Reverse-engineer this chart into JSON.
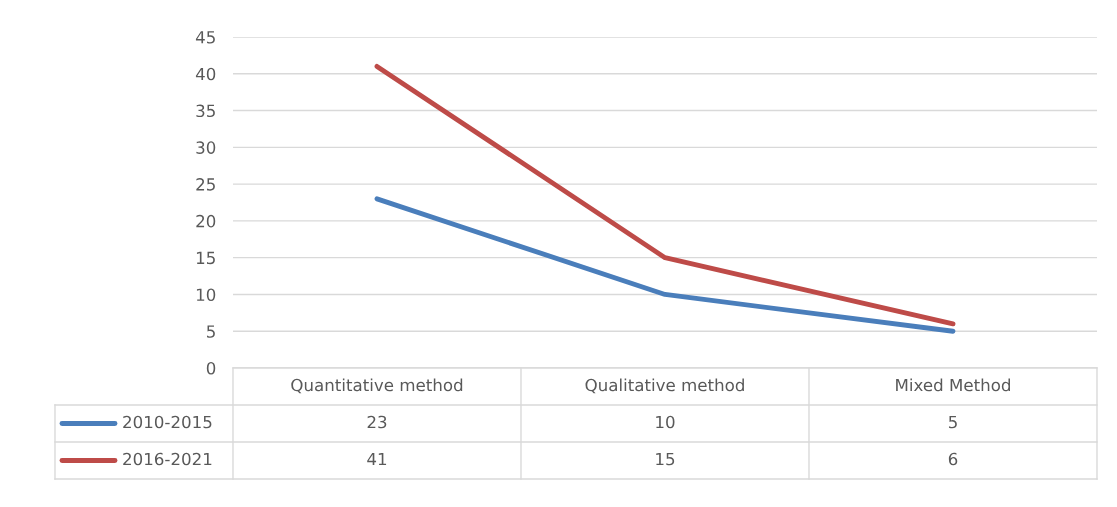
{
  "chart_data": {
    "type": "line",
    "categories": [
      "Quantitative method",
      "Qualitative method",
      "Mixed Method"
    ],
    "series": [
      {
        "name": "2010-2015",
        "color": "#4a7ebb",
        "values": [
          23,
          10,
          5
        ]
      },
      {
        "name": "2016-2021",
        "color": "#be4b48",
        "values": [
          41,
          15,
          6
        ]
      }
    ],
    "ylim": [
      0,
      45
    ],
    "yticks": [
      0,
      5,
      10,
      15,
      20,
      25,
      30,
      35,
      40,
      45
    ],
    "grid": "y",
    "legend": "bottom left",
    "data_labels": true,
    "marker": "none",
    "line_style": "solid"
  }
}
